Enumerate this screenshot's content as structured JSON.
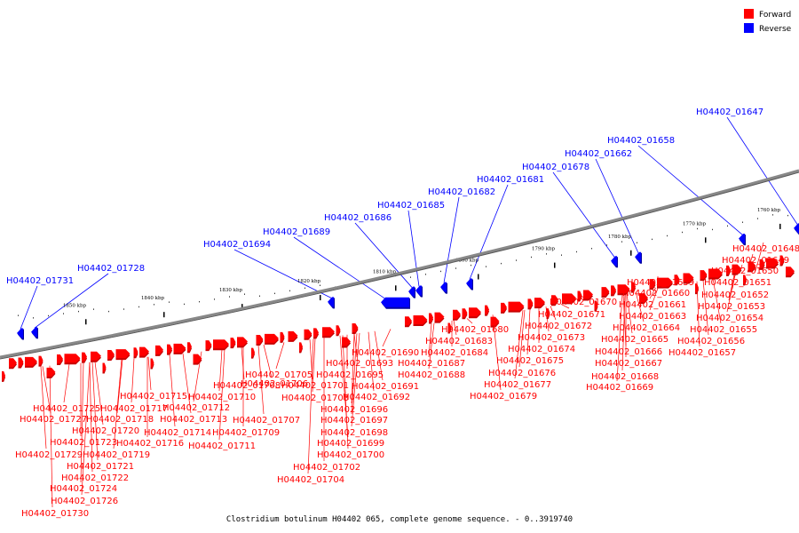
{
  "caption": "Clostridium botulinum H04402 065, complete genome sequence. - 0..3919740",
  "legend": [
    {
      "label": "Forward",
      "color": "#ff0000"
    },
    {
      "label": "Reverse",
      "color": "#0000ff"
    }
  ],
  "colors": {
    "forward": "#ff0000",
    "forward_shadow": "#c80000",
    "reverse": "#0000ff",
    "reverse_shadow": "#0000a0",
    "backbone": "#888888"
  },
  "ticks": [
    "1760 kbp",
    "1770 kbp",
    "1780 kbp",
    "1790 kbp",
    "1800 kbp",
    "1810 kbp",
    "1820 kbp",
    "1830 kbp",
    "1840 kbp",
    "1850 kbp"
  ],
  "reverse_genes": [
    "H04402_01647",
    "H04402_01658",
    "H04402_01662",
    "H04402_01678",
    "H04402_01681",
    "H04402_01682",
    "H04402_01685",
    "H04402_01686",
    "H04402_01689",
    "H04402_01694",
    "H04402_01728",
    "H04402_01731"
  ],
  "forward_genes": [
    "H04402_01648",
    "H04402_01649",
    "H04402_01650",
    "H04402_01651",
    "H04402_01652",
    "H04402_01653",
    "H04402_01654",
    "H04402_01655",
    "H04402_01656",
    "H04402_01657",
    "H04402_01659",
    "H04402_01660",
    "H04402_01661",
    "H04402_01663",
    "H04402_01664",
    "H04402_01665",
    "H04402_01666",
    "H04402_01667",
    "H04402_01668",
    "H04402_01669",
    "H04402_01670",
    "H04402_01671",
    "H04402_01672",
    "H04402_01673",
    "H04402_01674",
    "H04402_01675",
    "H04402_01676",
    "H04402_01677",
    "H04402_01679",
    "H04402_01680",
    "H04402_01683",
    "H04402_01684",
    "H04402_01687",
    "H04402_01688",
    "H04402_01690",
    "H04402_01691",
    "H04402_01692",
    "H04402_01693",
    "H04402_01695",
    "H04402_01696",
    "H04402_01697",
    "H04402_01698",
    "H04402_01699",
    "H04402_01700",
    "H04402_01701",
    "H04402_01702",
    "H04402_01703",
    "H04402_01704",
    "H04402_01705",
    "H04402_01706",
    "H04402_01707",
    "H04402_01708",
    "H04402_01709",
    "H04402_01710",
    "H04402_01711",
    "H04402_01712",
    "H04402_01713",
    "H04402_01714",
    "H04402_01715",
    "H04402_01716",
    "H04402_01717",
    "H04402_01718",
    "H04402_01719",
    "H04402_01720",
    "H04402_01721",
    "H04402_01722",
    "H04402_01723",
    "H04402_01724",
    "H04402_01725",
    "H04402_01726",
    "H04402_01727",
    "H04402_01729",
    "H04402_01730"
  ]
}
